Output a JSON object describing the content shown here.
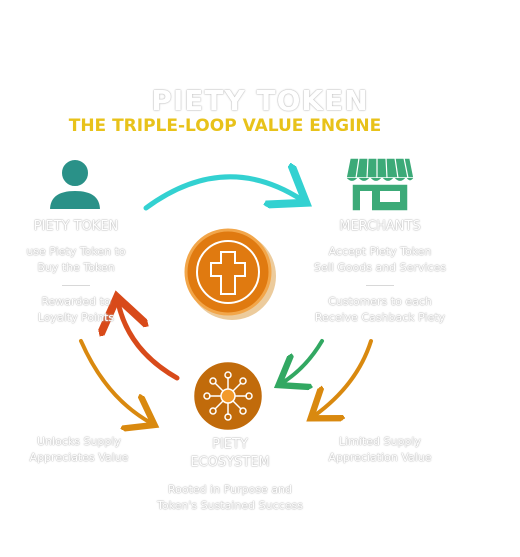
{
  "title": "PIETY TOKEN",
  "subtitle": "THE TRIPLE-LOOP VALUE ENGINE",
  "nodes": {
    "left": {
      "title": "PIETY TOKEN",
      "lines": [
        "use Piety Token to",
        "Buy the Token"
      ],
      "sub_lines": [
        "Rewarded to",
        "Loyalty Points"
      ],
      "icon": "user-icon"
    },
    "right": {
      "title": "MERCHANTS",
      "lines": [
        "Accept Piety Token",
        "Sell Goods and Services"
      ],
      "sub_lines": [
        "Customers to each",
        "Receive Cashback Piety"
      ],
      "icon": "storefront-icon"
    },
    "center": {
      "icon": "cross-coin-icon"
    },
    "bottom": {
      "title_lines": [
        "PIETY",
        "ECOSYSTEM"
      ],
      "sub_lines": [
        "Rooted in Purpose and",
        "Token's Sustained Success"
      ],
      "icon": "network-hub-icon"
    }
  },
  "side_notes": {
    "left": [
      "Unlocks Supply",
      "Appreciates Value"
    ],
    "right": [
      "Limited Supply",
      "Appreciation Value"
    ]
  },
  "colors": {
    "teal": "#2a9188",
    "merchant_green": "#3caa78",
    "gold": "#e8c21a",
    "cyan_arrow": "#33d1d1",
    "red_arrow": "#d84a1a",
    "orange_arrow": "#d9890f",
    "green_arrow": "#32a862",
    "coin_orange": "#e07a10",
    "hub_brown": "#c16b0b"
  }
}
